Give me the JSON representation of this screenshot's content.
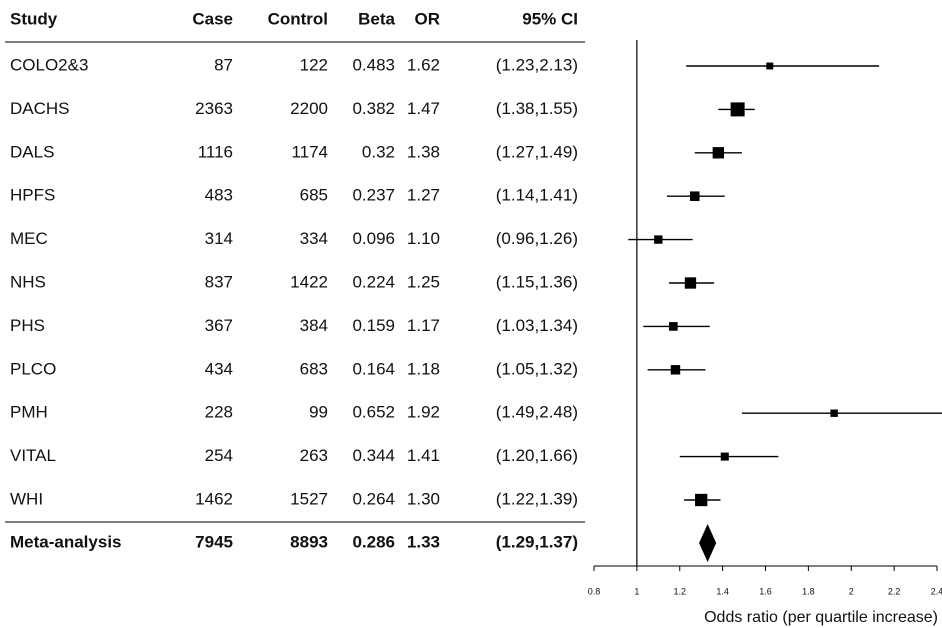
{
  "chart_data": {
    "type": "forest",
    "columns": [
      "Study",
      "Case",
      "Control",
      "Beta",
      "OR",
      "95% CI"
    ],
    "studies": [
      "COLO2&3",
      "DACHS",
      "DALS",
      "HPFS",
      "MEC",
      "NHS",
      "PHS",
      "PLCO",
      "PMH",
      "VITAL",
      "WHI"
    ],
    "cases": [
      87,
      2363,
      1116,
      483,
      314,
      837,
      367,
      434,
      228,
      254,
      1462
    ],
    "controls": [
      122,
      2200,
      1174,
      685,
      334,
      1422,
      384,
      683,
      99,
      263,
      1527
    ],
    "betas": [
      0.483,
      0.382,
      0.32,
      0.237,
      0.096,
      0.224,
      0.159,
      0.164,
      0.652,
      0.344,
      0.264
    ],
    "values": [
      1.62,
      1.47,
      1.38,
      1.27,
      1.1,
      1.25,
      1.17,
      1.18,
      1.92,
      1.41,
      1.3
    ],
    "value_labels": [
      "1.62",
      "1.47",
      "1.38",
      "1.27",
      "1.10",
      "1.25",
      "1.17",
      "1.18",
      "1.92",
      "1.41",
      "1.30"
    ],
    "ci_low": [
      1.23,
      1.38,
      1.27,
      1.14,
      0.96,
      1.15,
      1.03,
      1.05,
      1.49,
      1.2,
      1.22
    ],
    "ci_high": [
      2.13,
      1.55,
      1.49,
      1.41,
      1.26,
      1.36,
      1.34,
      1.32,
      2.48,
      1.66,
      1.39
    ],
    "ci_labels": [
      "(1.23,2.13)",
      "(1.38,1.55)",
      "(1.27,1.49)",
      "(1.14,1.41)",
      "(0.96,1.26)",
      "(1.15,1.36)",
      "(1.03,1.34)",
      "(1.05,1.32)",
      "(1.49,2.48)",
      "(1.20,1.66)",
      "(1.22,1.39)"
    ],
    "summary": {
      "name": "Meta-analysis",
      "case": 7945,
      "control": 8893,
      "beta": 0.286,
      "value": 1.33,
      "value_label": "1.33",
      "ci_low": 1.29,
      "ci_high": 1.37,
      "ci_label": "(1.29,1.37)"
    },
    "reference_line": 1,
    "xlim": [
      0.8,
      2.4
    ],
    "xticks": [
      0.8,
      1,
      1.2,
      1.4,
      1.6,
      1.8,
      2,
      2.2,
      2.4
    ],
    "xlabel": "Odds ratio (per quartile increase)"
  }
}
